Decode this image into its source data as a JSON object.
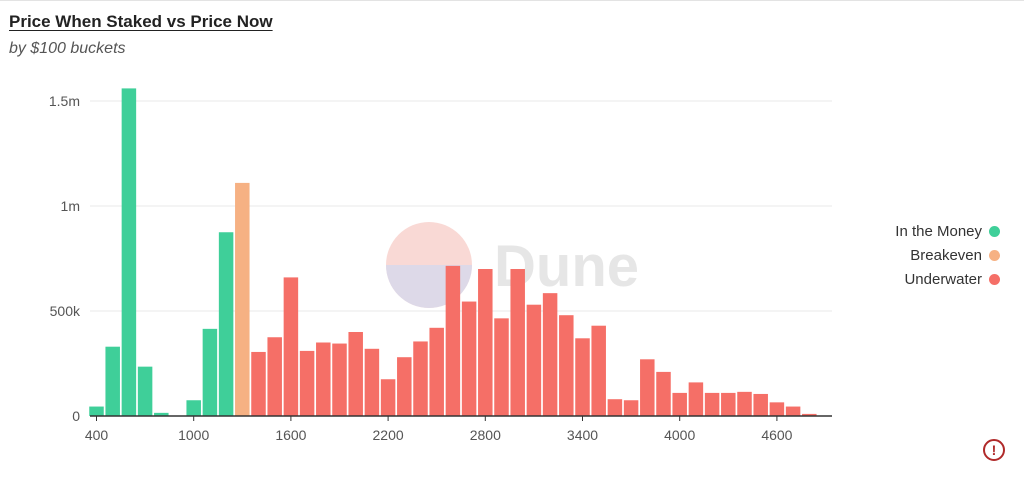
{
  "title": "Price When Staked vs Price Now",
  "subtitle": "by $100 buckets",
  "watermark": "Dune",
  "alert_symbol": "!",
  "colors": {
    "in_the_money": "#3fcf99",
    "breakeven": "#f6b183",
    "underwater": "#f56f67",
    "grid": "#e8e8e8",
    "axis": "#333333",
    "tick_text": "#555555"
  },
  "chart_data": {
    "type": "bar",
    "title": "Price When Staked vs Price Now",
    "subtitle": "by $100 buckets",
    "xlabel": "",
    "ylabel": "",
    "ylim": [
      0,
      1500000
    ],
    "yticks": [
      {
        "value": 0,
        "label": "0"
      },
      {
        "value": 500000,
        "label": "500k"
      },
      {
        "value": 1000000,
        "label": "1m"
      },
      {
        "value": 1500000,
        "label": "1.5m"
      }
    ],
    "xticks": [
      400,
      1000,
      1600,
      2200,
      2800,
      3400,
      4000,
      4600
    ],
    "grid": true,
    "legend_position": "right",
    "series": [
      {
        "name": "In the Money",
        "color": "#3fcf99",
        "x": [
          400,
          500,
          600,
          700,
          800,
          900,
          1000,
          1100,
          1200
        ],
        "values": [
          45000,
          330000,
          1560000,
          235000,
          15000,
          0,
          75000,
          415000,
          875000
        ]
      },
      {
        "name": "Breakeven",
        "color": "#f6b183",
        "x": [
          1300
        ],
        "values": [
          1110000
        ]
      },
      {
        "name": "Underwater",
        "color": "#f56f67",
        "x": [
          1400,
          1500,
          1600,
          1700,
          1800,
          1900,
          2000,
          2100,
          2200,
          2300,
          2400,
          2500,
          2600,
          2700,
          2800,
          2900,
          3000,
          3100,
          3200,
          3300,
          3400,
          3500,
          3600,
          3700,
          3800,
          3900,
          4000,
          4100,
          4200,
          4300,
          4400,
          4500,
          4600,
          4700,
          4800
        ],
        "values": [
          305000,
          375000,
          660000,
          310000,
          350000,
          345000,
          400000,
          320000,
          175000,
          280000,
          355000,
          420000,
          715000,
          545000,
          700000,
          465000,
          700000,
          530000,
          585000,
          480000,
          370000,
          430000,
          80000,
          75000,
          270000,
          210000,
          110000,
          160000,
          110000,
          110000,
          115000,
          105000,
          65000,
          45000,
          10000
        ]
      }
    ]
  }
}
